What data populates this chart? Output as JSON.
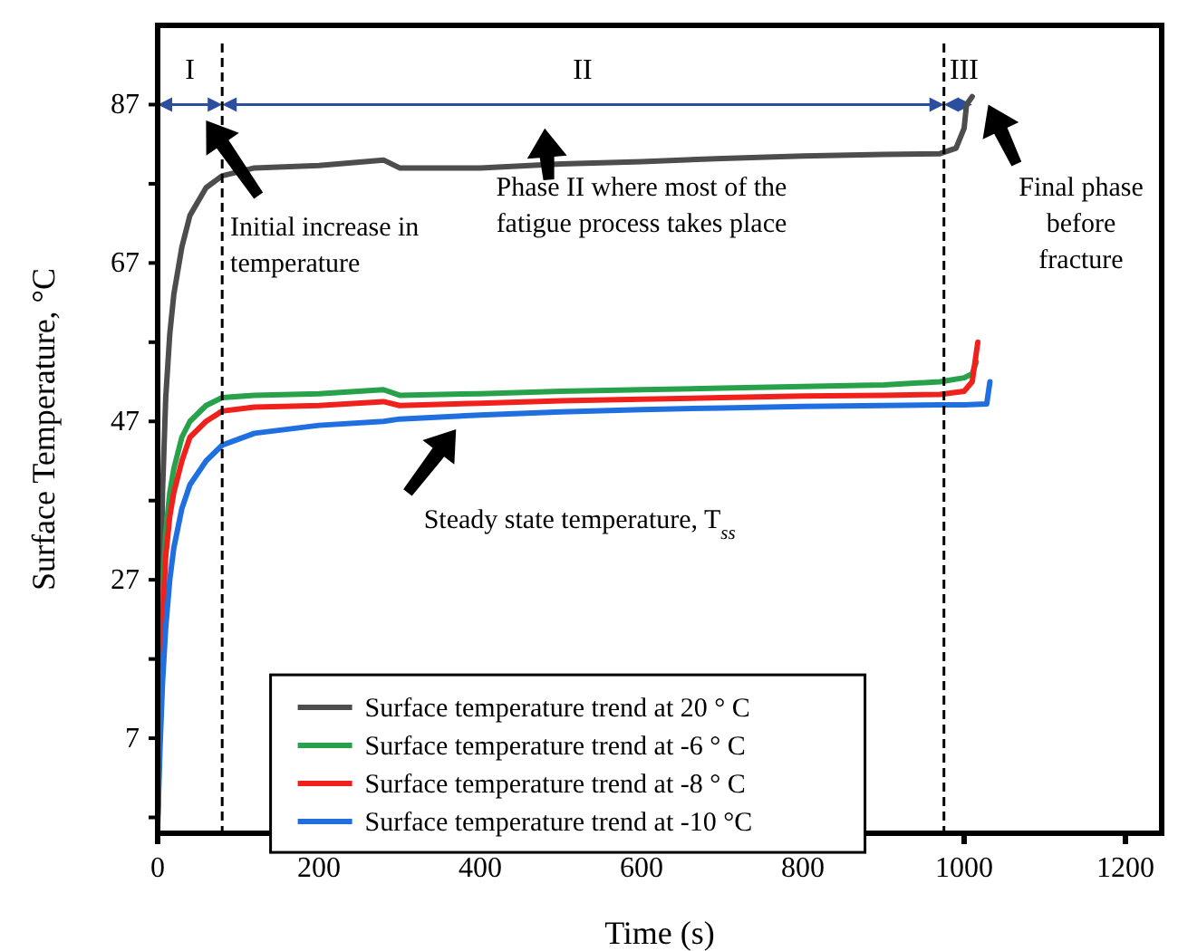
{
  "chart_data": {
    "type": "line",
    "xlabel": "Time (s)",
    "ylabel": "Surface Temperature, °C",
    "x": [
      0,
      3,
      6,
      10,
      15,
      20,
      30,
      40,
      60,
      80,
      120,
      200,
      280,
      300,
      400,
      500,
      600,
      700,
      800,
      900,
      970,
      990,
      1000,
      1003,
      1010
    ],
    "series": [
      {
        "name": "Surface temperature trend at 20 ° C",
        "color": "#4d4d4d",
        "values": [
          -3,
          20,
          38,
          50,
          58,
          63,
          69,
          73,
          76.5,
          78,
          79,
          79.3,
          80,
          79,
          79,
          79.5,
          79.8,
          80.2,
          80.5,
          80.7,
          80.8,
          81.5,
          84,
          87,
          88
        ]
      },
      {
        "name": "Surface temperature trend at -6 ° C",
        "color": "#27a24b",
        "x": [
          0,
          3,
          6,
          10,
          15,
          20,
          30,
          40,
          60,
          80,
          120,
          200,
          280,
          300,
          400,
          500,
          600,
          700,
          800,
          900,
          970,
          1000,
          1010,
          1015
        ],
        "values": [
          -3,
          null,
          25,
          33,
          38,
          41,
          45,
          47,
          49,
          50,
          50.3,
          50.5,
          51,
          50.3,
          50.5,
          50.8,
          51,
          51.2,
          51.4,
          51.6,
          52,
          52.5,
          53,
          54.5
        ]
      },
      {
        "name": "Surface temperature trend at -8 ° C",
        "color": "#f0201c",
        "x": [
          0,
          3,
          6,
          10,
          15,
          20,
          30,
          40,
          60,
          80,
          120,
          200,
          280,
          300,
          400,
          500,
          600,
          700,
          800,
          900,
          970,
          1000,
          1010,
          1017
        ],
        "values": [
          -3,
          null,
          22,
          30,
          35,
          38,
          42,
          45,
          47,
          48.3,
          48.8,
          49,
          49.5,
          49,
          49.3,
          49.6,
          49.8,
          50,
          50.2,
          50.3,
          50.4,
          50.8,
          52,
          57
        ]
      },
      {
        "name": "Surface temperature trend at -10 °C",
        "color": "#1f6fe0",
        "x": [
          0,
          3,
          6,
          10,
          15,
          20,
          30,
          40,
          60,
          80,
          120,
          200,
          280,
          300,
          400,
          500,
          600,
          700,
          800,
          900,
          970,
          1000,
          1028,
          1032
        ],
        "values": [
          -4,
          6,
          14,
          21,
          27,
          31,
          36,
          39,
          42,
          44,
          45.5,
          46.5,
          47,
          47.3,
          47.8,
          48.2,
          48.5,
          48.7,
          48.9,
          49,
          49.1,
          49.1,
          49.2,
          52
        ]
      }
    ],
    "xlim": [
      0,
      1245
    ],
    "xticks": [
      0,
      200,
      400,
      600,
      800,
      1000,
      1200
    ],
    "ylim": [
      -5,
      97
    ],
    "yticks": [
      {
        "value": -3,
        "label": null
      },
      7,
      {
        "value": 17,
        "label": null
      },
      27,
      {
        "value": 37,
        "label": null
      },
      47,
      {
        "value": 57,
        "label": null
      },
      67,
      {
        "value": 77,
        "label": null
      },
      87
    ],
    "ref_lines": [
      {
        "axis": "x",
        "value": 80,
        "line_style": "dashed",
        "color": "#000000"
      },
      {
        "axis": "x",
        "value": 975,
        "line_style": "dashed",
        "color": "#000000"
      }
    ],
    "annotations": [
      "I",
      "II",
      "III",
      "Initial increase in temperature",
      "Phase II where most of the fatigue process takes place",
      "Final phase before fracture",
      "Steady state temperature, T$_{ss}$"
    ],
    "legend": "bottom",
    "grid": false,
    "marker": "none",
    "line_style": "solid"
  }
}
